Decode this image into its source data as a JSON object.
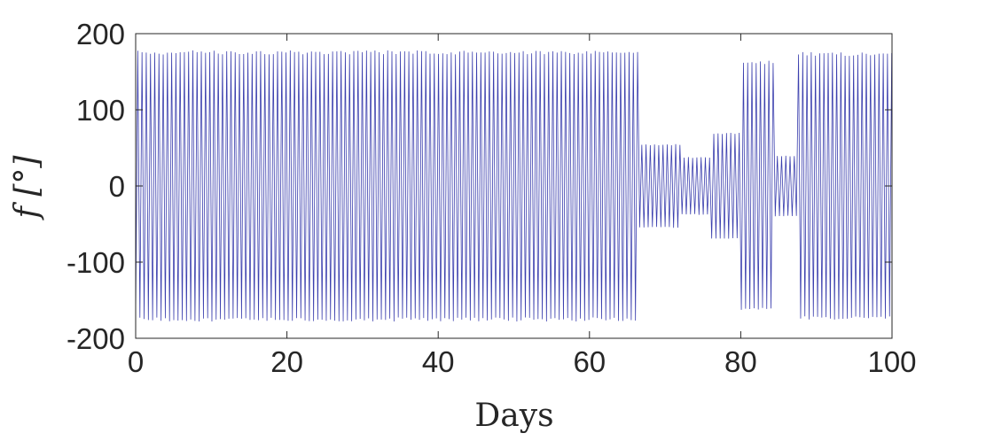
{
  "chart_data": {
    "type": "line",
    "title": "",
    "xlabel": "Days",
    "ylabel": "f [°]",
    "xlim": [
      0,
      100
    ],
    "ylim": [
      -200,
      200
    ],
    "x_ticks": [
      0,
      20,
      40,
      60,
      80,
      100
    ],
    "y_ticks": [
      200,
      100,
      0,
      -100,
      -200
    ],
    "x_tick_labels": [
      "0",
      "20",
      "40",
      "60",
      "80",
      "100"
    ],
    "y_tick_labels": [
      "200",
      "100",
      "0",
      "-100",
      "-200"
    ],
    "grid": false,
    "legend": "none",
    "line_color": "#3b3fae",
    "series": [
      {
        "description_free": true,
        "oscillation_period_days": 0.56,
        "segments": [
          {
            "x_start": 0,
            "x_end": 66.6,
            "amplitude": 178
          },
          {
            "x_start": 66.6,
            "x_end": 72,
            "amplitude": 55
          },
          {
            "x_start": 72,
            "x_end": 76,
            "amplitude": 38
          },
          {
            "x_start": 76,
            "x_end": 80,
            "amplitude": 70
          },
          {
            "x_start": 80,
            "x_end": 84.5,
            "amplitude": 165
          },
          {
            "x_start": 84.5,
            "x_end": 87.5,
            "amplitude": 40
          },
          {
            "x_start": 87.5,
            "x_end": 100,
            "amplitude": 176
          }
        ]
      }
    ]
  }
}
